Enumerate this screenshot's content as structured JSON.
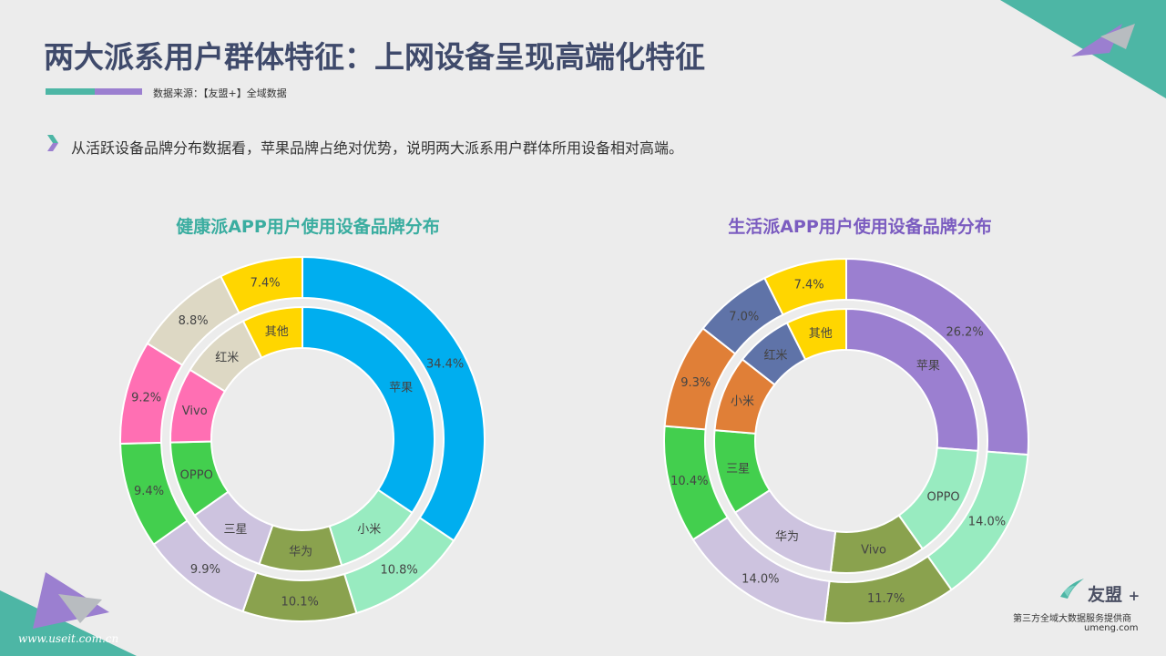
{
  "header": {
    "title": "两大派系用户群体特征：上网设备呈现高端化特征",
    "source": "数据来源：【友盟+】全域数据"
  },
  "summary": {
    "text": "从活跃设备品牌分布数据看，苹果品牌占绝对优势，说明两大派系用户群体所用设备相对高端。"
  },
  "chart_data": [
    {
      "type": "pie",
      "title": "健康派APP用户使用设备品牌分布",
      "labels": [
        "苹果",
        "小米",
        "华为",
        "三星",
        "OPPO",
        "Vivo",
        "红米",
        "其他"
      ],
      "values": [
        34.4,
        10.8,
        10.1,
        9.9,
        9.4,
        9.2,
        8.8,
        7.4
      ],
      "value_labels": [
        "34.4%",
        "10.8%",
        "10.1%",
        "9.9%",
        "9.4%",
        "9.2%",
        "8.8%",
        "7.4%"
      ],
      "colors": [
        "#00aeef",
        "#98ebc0",
        "#8aa24e",
        "#cdc3df",
        "#43cf4e",
        "#ff6fb3",
        "#ddd8c4",
        "#ffd600"
      ]
    },
    {
      "type": "pie",
      "title": "生活派APP用户使用设备品牌分布",
      "labels": [
        "苹果",
        "OPPO",
        "Vivo",
        "华为",
        "三星",
        "小米",
        "红米",
        "其他"
      ],
      "values": [
        26.2,
        14.0,
        11.7,
        14.0,
        10.4,
        9.3,
        7.0,
        7.4
      ],
      "value_labels": [
        "26.2%",
        "14.0%",
        "11.7%",
        "14.0%",
        "10.4%",
        "9.3%",
        "7.0%",
        "7.4%"
      ],
      "colors": [
        "#9b7fd0",
        "#98ebc0",
        "#8aa24e",
        "#cdc3df",
        "#43cf4e",
        "#e07f37",
        "#5f73a8",
        "#ffd600"
      ]
    }
  ],
  "brand": {
    "name": "友盟",
    "plus": "+",
    "tagline": "第三方全域大数据服务提供商",
    "url": "umeng.com"
  },
  "watermark": "www.useit.com.cn"
}
